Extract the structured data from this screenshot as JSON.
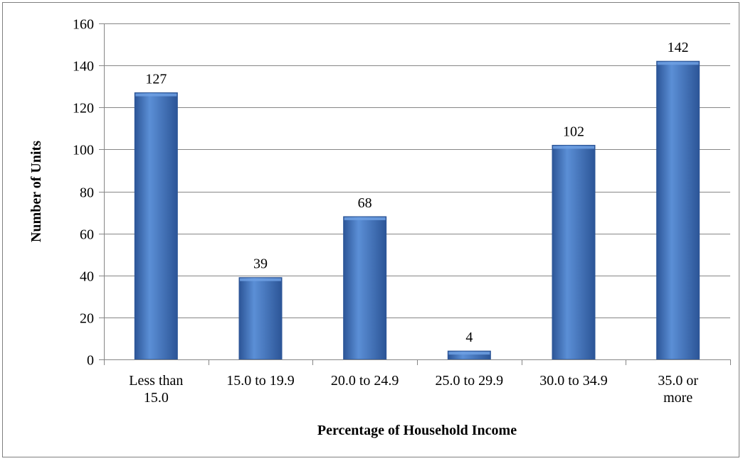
{
  "chart_data": {
    "type": "bar",
    "title": "",
    "categories": [
      [
        "Less than",
        "15.0"
      ],
      [
        "15.0 to 19.9"
      ],
      [
        "20.0 to 24.9"
      ],
      [
        "25.0 to 29.9"
      ],
      [
        "30.0 to 34.9"
      ],
      [
        "35.0  or",
        "more"
      ]
    ],
    "values": [
      127,
      39,
      68,
      4,
      102,
      142
    ],
    "data_labels": [
      "127",
      "39",
      "68",
      "4",
      "102",
      "142"
    ],
    "xlabel": "Percentage of Household Income",
    "ylabel": "Number of Units",
    "ylim": [
      0,
      160
    ],
    "yticks": [
      0,
      20,
      40,
      60,
      80,
      100,
      120,
      140,
      160
    ],
    "grid": true,
    "legend": "none",
    "colors": {
      "bar_light": "#5b8fd6",
      "bar_mid": "#3f72c0",
      "bar_dark": "#2c5597",
      "bar_top": "#6fa0e3"
    }
  }
}
